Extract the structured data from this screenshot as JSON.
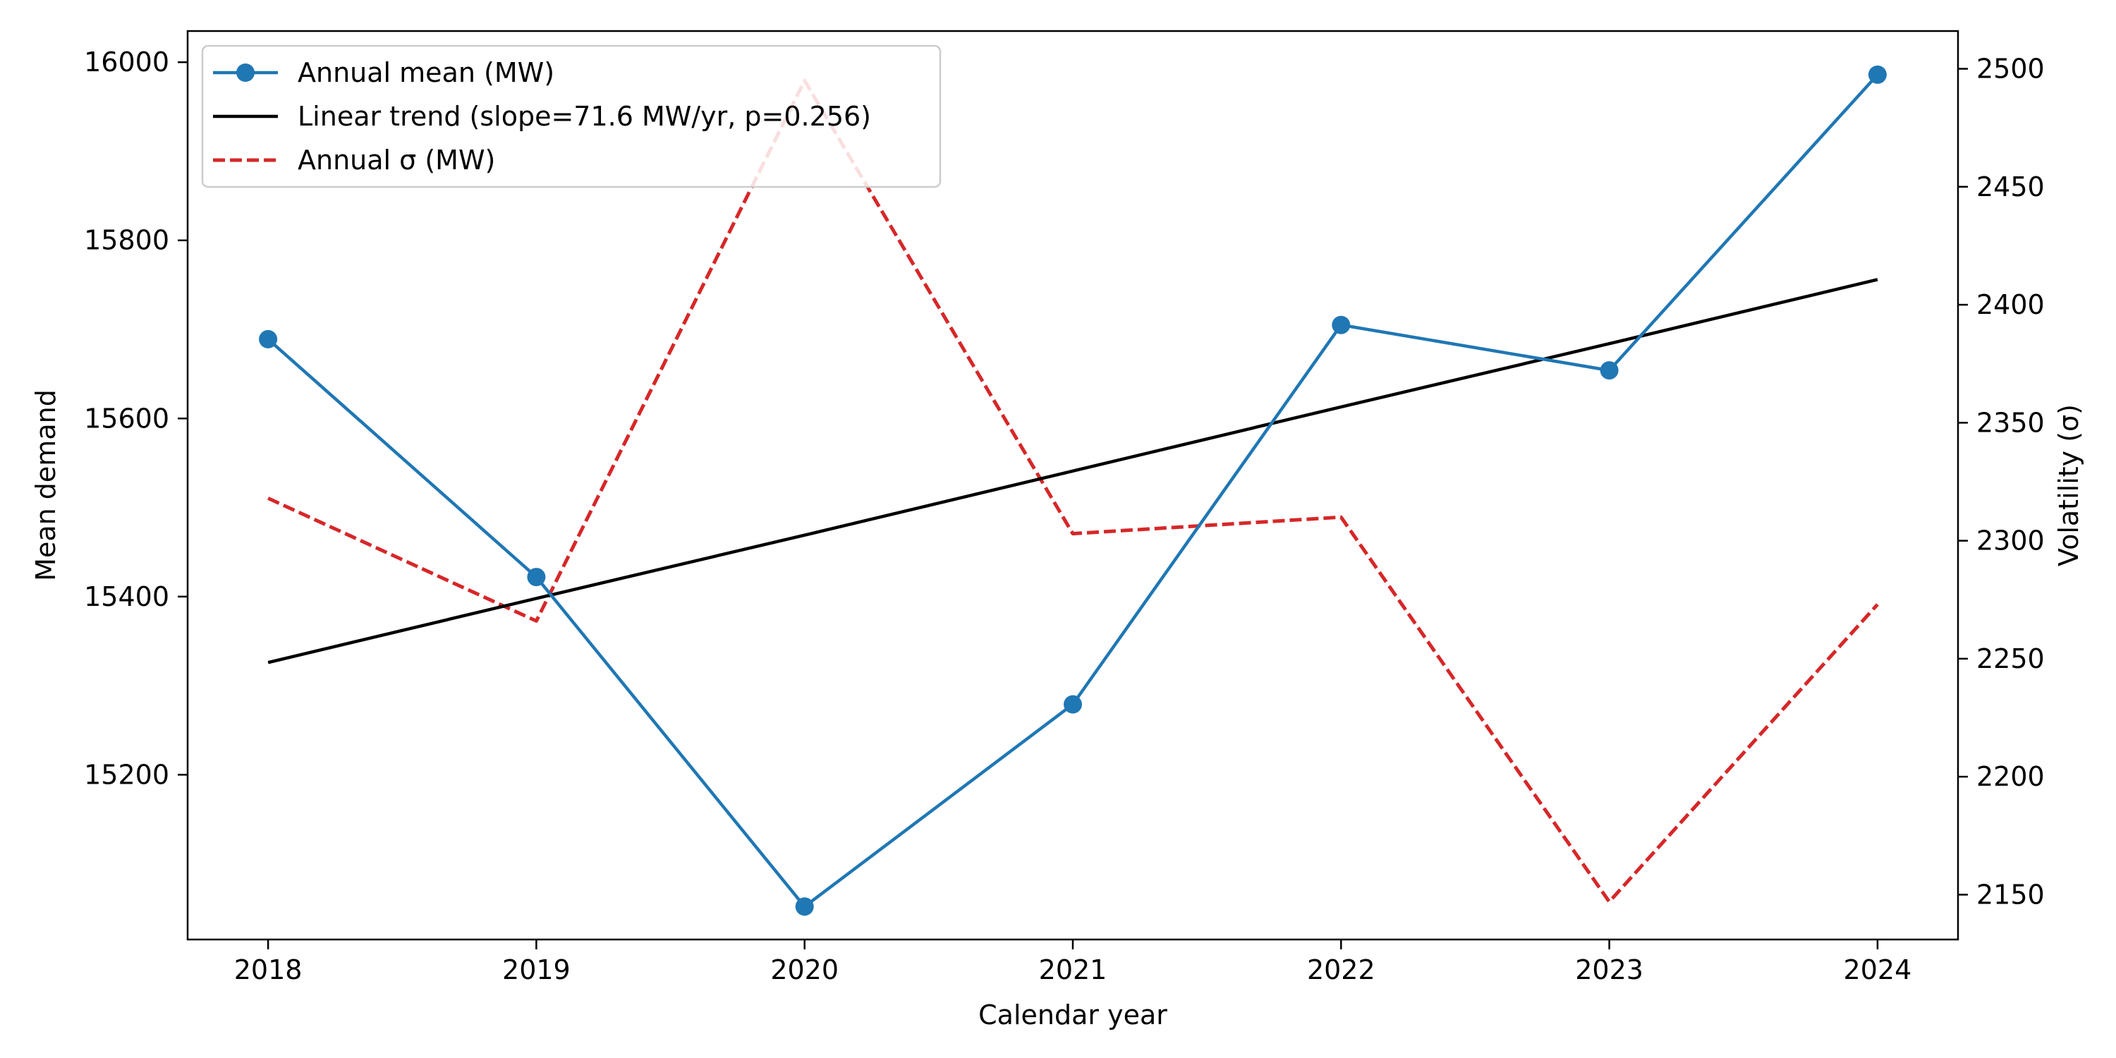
{
  "chart_data": {
    "type": "line",
    "title": "",
    "xlabel": "Calendar year",
    "ylabel": "Mean demand",
    "y2label": "Volatility (σ)",
    "x": [
      2018,
      2019,
      2020,
      2021,
      2022,
      2023,
      2024
    ],
    "xlim": [
      2017.7,
      2024.3
    ],
    "ylim": [
      15015,
      16035
    ],
    "y2lim": [
      2131,
      2516
    ],
    "xticks": [
      "2018",
      "2019",
      "2020",
      "2021",
      "2022",
      "2023",
      "2024"
    ],
    "yticks": [
      "15200",
      "15400",
      "15600",
      "15800",
      "16000"
    ],
    "y2ticks": [
      "2150",
      "2200",
      "2250",
      "2300",
      "2350",
      "2400",
      "2450",
      "2500"
    ],
    "grid": false,
    "legend_position": "top-left",
    "series": [
      {
        "name": "Annual mean (MW)",
        "axis": "left",
        "style": "solid",
        "marker": "circle",
        "color": "#1f77b4",
        "values": [
          15689,
          15422,
          15052,
          15279,
          15705,
          15654,
          15986
        ]
      },
      {
        "name": "Linear trend (slope=71.6 MW/yr, p=0.256)",
        "axis": "left",
        "style": "solid",
        "marker": "none",
        "color": "#000000",
        "values": [
          15326,
          15398,
          15469,
          15541,
          15613,
          15684,
          15756
        ]
      },
      {
        "name": "Annual σ (MW)",
        "axis": "right",
        "style": "dashed",
        "marker": "none",
        "color": "#d62728",
        "values": [
          2318,
          2266,
          2495,
          2303,
          2310,
          2147,
          2273
        ]
      }
    ]
  }
}
